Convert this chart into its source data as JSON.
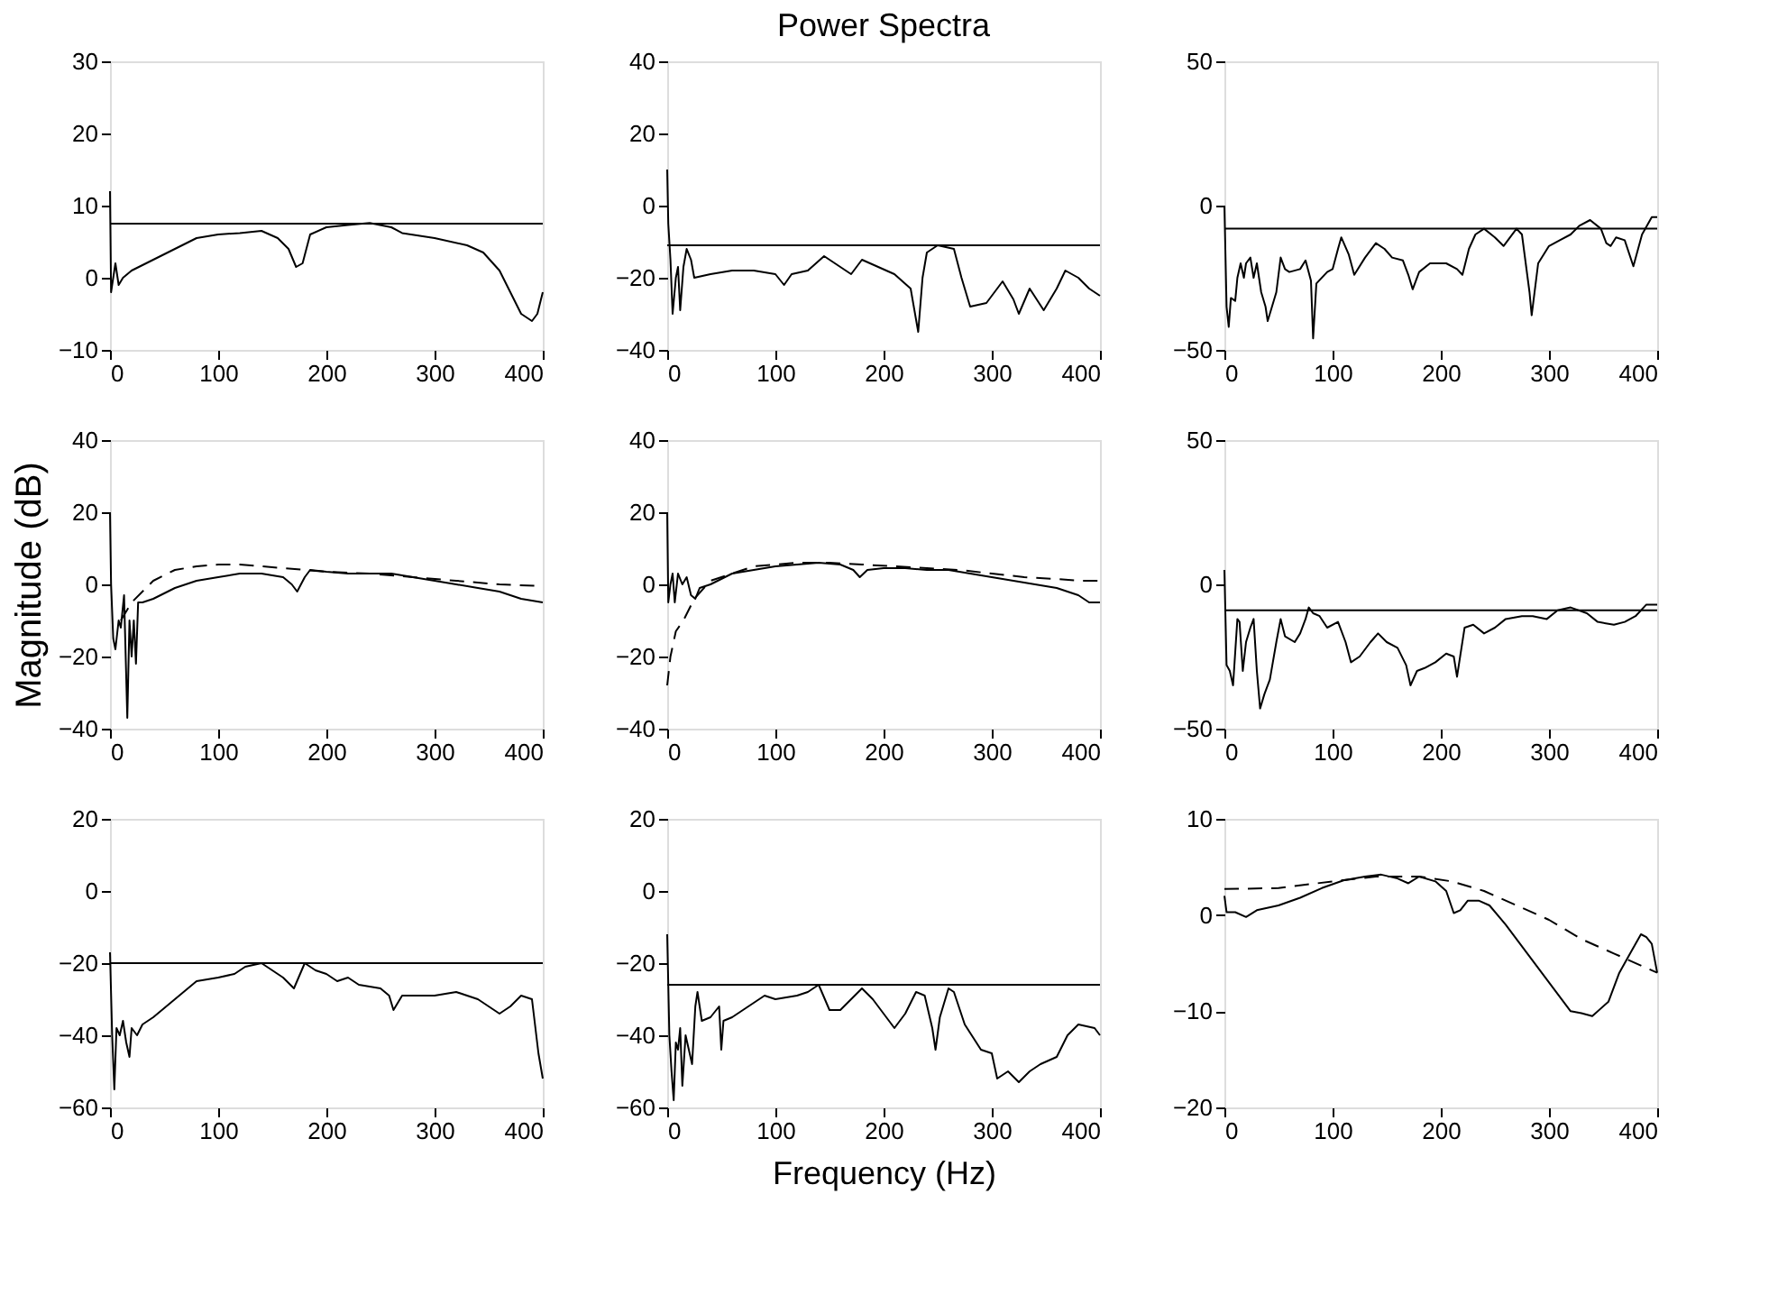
{
  "chart_data": [
    {
      "type": "line",
      "xlim": [
        0,
        400
      ],
      "xticks": [
        0,
        100,
        200,
        300,
        400
      ],
      "ylim": [
        -10,
        30
      ],
      "yticks": [
        -10,
        0,
        10,
        20,
        30
      ],
      "grid": false,
      "marker": "none",
      "line_style": "solid",
      "ref_lines": [
        {
          "axis": "y",
          "value": 7.5,
          "color": "#000000",
          "line_style": "solid"
        }
      ],
      "series": [
        {
          "color": "#000000",
          "x": [
            0,
            1,
            3,
            5,
            8,
            12,
            20,
            40,
            60,
            80,
            100,
            120,
            140,
            155,
            165,
            172,
            178,
            185,
            200,
            220,
            240,
            260,
            270,
            300,
            330,
            345,
            360,
            370,
            380,
            390,
            395,
            400
          ],
          "values": [
            12,
            -2,
            0,
            2,
            -1,
            0,
            1,
            2.5,
            4,
            5.5,
            6,
            6.2,
            6.5,
            5.5,
            4,
            1.5,
            2,
            6,
            7,
            7.3,
            7.6,
            7,
            6.2,
            5.5,
            4.5,
            3.5,
            1,
            -2,
            -5,
            -6,
            -5,
            -2
          ]
        }
      ]
    },
    {
      "type": "line",
      "title": "Power Spectra",
      "xlim": [
        0,
        400
      ],
      "xticks": [
        0,
        100,
        200,
        300,
        400
      ],
      "ylim": [
        -40,
        40
      ],
      "yticks": [
        -40,
        -20,
        0,
        20,
        40
      ],
      "grid": false,
      "marker": "none",
      "line_style": "solid",
      "ref_lines": [
        {
          "axis": "y",
          "value": -11,
          "color": "#000000",
          "line_style": "solid"
        }
      ],
      "series": [
        {
          "color": "#000000",
          "x": [
            0,
            1,
            3,
            5,
            8,
            10,
            12,
            15,
            18,
            22,
            25,
            40,
            60,
            80,
            100,
            108,
            115,
            130,
            145,
            155,
            170,
            180,
            195,
            210,
            225,
            232,
            236,
            240,
            250,
            265,
            272,
            280,
            295,
            310,
            320,
            325,
            335,
            348,
            360,
            368,
            380,
            390,
            400
          ],
          "values": [
            10,
            -5,
            -15,
            -30,
            -20,
            -17,
            -29,
            -17,
            -12,
            -15,
            -20,
            -19,
            -18,
            -18,
            -19,
            -22,
            -19,
            -18,
            -14,
            -16,
            -19,
            -15,
            -17,
            -19,
            -23,
            -35,
            -20,
            -13,
            -11,
            -12,
            -20,
            -28,
            -27,
            -21,
            -26,
            -30,
            -23,
            -29,
            -23,
            -18,
            -20,
            -23,
            -25
          ]
        }
      ]
    },
    {
      "type": "line",
      "xlim": [
        0,
        400
      ],
      "xticks": [
        0,
        100,
        200,
        300,
        400
      ],
      "ylim": [
        -50,
        50
      ],
      "yticks": [
        -50,
        0,
        50
      ],
      "grid": false,
      "marker": "none",
      "line_style": "solid",
      "ref_lines": [
        {
          "axis": "y",
          "value": -8,
          "color": "#000000",
          "line_style": "solid"
        }
      ],
      "series": [
        {
          "color": "#000000",
          "x": [
            0,
            2,
            4,
            6,
            10,
            12,
            15,
            18,
            20,
            24,
            27,
            30,
            34,
            38,
            40,
            44,
            48,
            52,
            56,
            60,
            70,
            75,
            80,
            82,
            85,
            95,
            100,
            105,
            108,
            115,
            120,
            130,
            140,
            148,
            155,
            165,
            170,
            174,
            180,
            190,
            205,
            215,
            220,
            226,
            232,
            240,
            250,
            258,
            270,
            275,
            282,
            284,
            290,
            300,
            310,
            320,
            328,
            338,
            348,
            353,
            357,
            362,
            370,
            378,
            386,
            395,
            400
          ],
          "values": [
            0,
            -35,
            -42,
            -32,
            -33,
            -25,
            -20,
            -25,
            -20,
            -18,
            -25,
            -20,
            -30,
            -35,
            -40,
            -35,
            -30,
            -18,
            -22,
            -23,
            -22,
            -19,
            -26,
            -46,
            -27,
            -23,
            -22,
            -15,
            -11,
            -17,
            -24,
            -18,
            -13,
            -15,
            -18,
            -19,
            -24,
            -29,
            -23,
            -20,
            -20,
            -22,
            -24,
            -15,
            -10,
            -8,
            -11,
            -14,
            -8,
            -10,
            -30,
            -38,
            -20,
            -14,
            -12,
            -10,
            -7,
            -5,
            -8,
            -13,
            -14,
            -11,
            -12,
            -21,
            -10,
            -4,
            -4
          ]
        }
      ]
    },
    {
      "type": "line",
      "ylabel": "Magnitude (dB)",
      "xlim": [
        0,
        400
      ],
      "xticks": [
        0,
        100,
        200,
        300,
        400
      ],
      "ylim": [
        -40,
        40
      ],
      "yticks": [
        -40,
        -20,
        0,
        20,
        40
      ],
      "grid": false,
      "marker": "none",
      "series": [
        {
          "color": "#000000",
          "line_style": "solid",
          "x": [
            0,
            1,
            3,
            5,
            8,
            10,
            13,
            16,
            18,
            20,
            22,
            24,
            26,
            30,
            40,
            60,
            80,
            100,
            120,
            140,
            160,
            168,
            173,
            180,
            185,
            200,
            220,
            240,
            260,
            280,
            300,
            320,
            340,
            360,
            380,
            400
          ],
          "values": [
            20,
            0,
            -15,
            -18,
            -10,
            -12,
            -3,
            -37,
            -10,
            -20,
            -10,
            -22,
            -5,
            -5,
            -4,
            -1,
            1,
            2,
            3,
            3,
            2,
            0,
            -2,
            2,
            4,
            3.5,
            3,
            3,
            3,
            2,
            1,
            0,
            -1,
            -2,
            -4,
            -5
          ]
        },
        {
          "color": "#000000",
          "line_style": "dashed",
          "x": [
            10,
            20,
            40,
            60,
            80,
            100,
            120,
            140,
            160,
            180,
            200,
            240,
            280,
            320,
            360,
            400
          ],
          "values": [
            -10,
            -5,
            1,
            4,
            5,
            5.5,
            5.5,
            5,
            4.5,
            4,
            3.5,
            3,
            2,
            1,
            0,
            -0.5
          ]
        }
      ]
    },
    {
      "type": "line",
      "xlim": [
        0,
        400
      ],
      "xticks": [
        0,
        100,
        200,
        300,
        400
      ],
      "ylim": [
        -40,
        40
      ],
      "yticks": [
        -40,
        -20,
        0,
        20,
        40
      ],
      "grid": false,
      "marker": "none",
      "series": [
        {
          "color": "#000000",
          "line_style": "solid",
          "x": [
            0,
            1,
            3,
            5,
            7,
            10,
            14,
            18,
            22,
            26,
            30,
            40,
            60,
            80,
            100,
            120,
            140,
            160,
            172,
            178,
            185,
            200,
            220,
            240,
            260,
            280,
            300,
            320,
            340,
            360,
            380,
            390,
            400
          ],
          "values": [
            20,
            -5,
            0,
            3,
            -5,
            3,
            0,
            2,
            -3,
            -4,
            -1,
            0,
            3,
            4,
            5,
            5.5,
            6,
            5.5,
            4,
            2,
            4,
            4.5,
            4.5,
            4,
            4,
            3,
            2,
            1,
            0,
            -1,
            -3,
            -5,
            -5
          ]
        },
        {
          "color": "#000000",
          "line_style": "dashed",
          "x": [
            0,
            3,
            8,
            15,
            25,
            40,
            60,
            80,
            100,
            120,
            150,
            180,
            210,
            240,
            270,
            300,
            330,
            360,
            380,
            400
          ],
          "values": [
            -28,
            -20,
            -13,
            -10,
            -4,
            1,
            3,
            5,
            5.5,
            6,
            6,
            5.5,
            5,
            4.5,
            4,
            3,
            2,
            1.5,
            1,
            1
          ]
        }
      ]
    },
    {
      "type": "line",
      "xlim": [
        0,
        400
      ],
      "xticks": [
        0,
        100,
        200,
        300,
        400
      ],
      "ylim": [
        -50,
        50
      ],
      "yticks": [
        -50,
        0,
        50
      ],
      "grid": false,
      "marker": "none",
      "line_style": "solid",
      "ref_lines": [
        {
          "axis": "y",
          "value": -9,
          "color": "#000000",
          "line_style": "solid"
        }
      ],
      "series": [
        {
          "color": "#000000",
          "x": [
            0,
            2,
            5,
            8,
            12,
            14,
            17,
            20,
            24,
            27,
            30,
            33,
            37,
            42,
            48,
            52,
            56,
            65,
            70,
            75,
            78,
            82,
            88,
            95,
            105,
            112,
            117,
            125,
            135,
            142,
            150,
            160,
            168,
            172,
            178,
            185,
            195,
            205,
            212,
            215,
            222,
            230,
            240,
            250,
            260,
            275,
            285,
            298,
            308,
            320,
            335,
            345,
            360,
            370,
            380,
            390,
            400
          ],
          "values": [
            5,
            -28,
            -30,
            -35,
            -12,
            -13,
            -30,
            -20,
            -15,
            -12,
            -30,
            -43,
            -38,
            -33,
            -20,
            -12,
            -18,
            -20,
            -17,
            -12,
            -8,
            -10,
            -11,
            -15,
            -13,
            -20,
            -27,
            -25,
            -20,
            -17,
            -20,
            -22,
            -28,
            -35,
            -30,
            -29,
            -27,
            -24,
            -25,
            -32,
            -15,
            -14,
            -17,
            -15,
            -12,
            -11,
            -11,
            -12,
            -9,
            -8,
            -10,
            -13,
            -14,
            -13,
            -11,
            -7,
            -7
          ]
        }
      ]
    },
    {
      "type": "line",
      "xlim": [
        0,
        400
      ],
      "xticks": [
        0,
        100,
        200,
        300,
        400
      ],
      "ylim": [
        -60,
        20
      ],
      "yticks": [
        -60,
        -40,
        -20,
        0,
        20
      ],
      "grid": false,
      "marker": "none",
      "line_style": "solid",
      "ref_lines": [
        {
          "axis": "y",
          "value": -20,
          "color": "#000000",
          "line_style": "solid"
        }
      ],
      "series": [
        {
          "color": "#000000",
          "x": [
            0,
            2,
            4,
            6,
            9,
            12,
            15,
            18,
            20,
            25,
            30,
            40,
            60,
            80,
            100,
            115,
            125,
            140,
            150,
            160,
            170,
            180,
            190,
            200,
            210,
            220,
            230,
            250,
            258,
            262,
            270,
            300,
            320,
            340,
            360,
            370,
            380,
            390,
            396,
            400
          ],
          "values": [
            -17,
            -40,
            -55,
            -38,
            -40,
            -36,
            -42,
            -46,
            -38,
            -40,
            -37,
            -35,
            -30,
            -25,
            -24,
            -23,
            -21,
            -20,
            -22,
            -24,
            -27,
            -20,
            -22,
            -23,
            -25,
            -24,
            -26,
            -27,
            -29,
            -33,
            -29,
            -29,
            -28,
            -30,
            -34,
            -32,
            -29,
            -30,
            -45,
            -52
          ]
        }
      ]
    },
    {
      "type": "line",
      "xlabel": "Frequency (Hz)",
      "xlim": [
        0,
        400
      ],
      "xticks": [
        0,
        100,
        200,
        300,
        400
      ],
      "ylim": [
        -60,
        20
      ],
      "yticks": [
        -60,
        -40,
        -20,
        0,
        20
      ],
      "grid": false,
      "marker": "none",
      "line_style": "solid",
      "ref_lines": [
        {
          "axis": "y",
          "value": -26,
          "color": "#000000",
          "line_style": "solid"
        }
      ],
      "series": [
        {
          "color": "#000000",
          "x": [
            0,
            2,
            4,
            6,
            8,
            10,
            12,
            14,
            17,
            20,
            23,
            26,
            28,
            32,
            40,
            48,
            50,
            52,
            60,
            80,
            90,
            100,
            120,
            130,
            140,
            150,
            160,
            170,
            180,
            190,
            200,
            210,
            220,
            230,
            238,
            245,
            248,
            252,
            260,
            265,
            275,
            290,
            300,
            305,
            315,
            325,
            335,
            345,
            360,
            370,
            380,
            395,
            400
          ],
          "values": [
            -12,
            -40,
            -50,
            -58,
            -42,
            -44,
            -38,
            -54,
            -40,
            -44,
            -48,
            -32,
            -28,
            -36,
            -35,
            -32,
            -44,
            -36,
            -35,
            -31,
            -29,
            -30,
            -29,
            -28,
            -26,
            -33,
            -33,
            -30,
            -27,
            -30,
            -34,
            -38,
            -34,
            -28,
            -29,
            -38,
            -44,
            -35,
            -27,
            -28,
            -37,
            -44,
            -45,
            -52,
            -50,
            -53,
            -50,
            -48,
            -46,
            -40,
            -37,
            -38,
            -40
          ]
        }
      ]
    },
    {
      "type": "line",
      "xlim": [
        0,
        400
      ],
      "xticks": [
        0,
        100,
        200,
        300,
        400
      ],
      "ylim": [
        -20,
        10
      ],
      "yticks": [
        -20,
        -10,
        0,
        10
      ],
      "grid": false,
      "marker": "none",
      "series": [
        {
          "color": "#000000",
          "line_style": "solid",
          "x": [
            0,
            2,
            10,
            20,
            30,
            50,
            70,
            90,
            110,
            130,
            145,
            160,
            170,
            180,
            195,
            205,
            212,
            218,
            225,
            235,
            245,
            260,
            280,
            290,
            300,
            310,
            320,
            330,
            340,
            355,
            365,
            375,
            385,
            390,
            395,
            400
          ],
          "values": [
            2,
            0.3,
            0.3,
            -0.2,
            0.5,
            1,
            1.8,
            2.8,
            3.6,
            4,
            4.2,
            3.8,
            3.3,
            4,
            3.5,
            2.5,
            0.2,
            0.5,
            1.5,
            1.5,
            1,
            -1,
            -4,
            -5.5,
            -7,
            -8.5,
            -10,
            -10.2,
            -10.5,
            -9,
            -6,
            -4,
            -2,
            -2.3,
            -3,
            -6
          ]
        },
        {
          "color": "#000000",
          "line_style": "dashed",
          "x": [
            0,
            50,
            100,
            140,
            180,
            210,
            240,
            270,
            300,
            330,
            360,
            400
          ],
          "values": [
            2.7,
            2.8,
            3.5,
            4,
            4,
            3.5,
            2.5,
            1,
            -0.5,
            -2.5,
            -4,
            -6
          ]
        }
      ]
    }
  ]
}
